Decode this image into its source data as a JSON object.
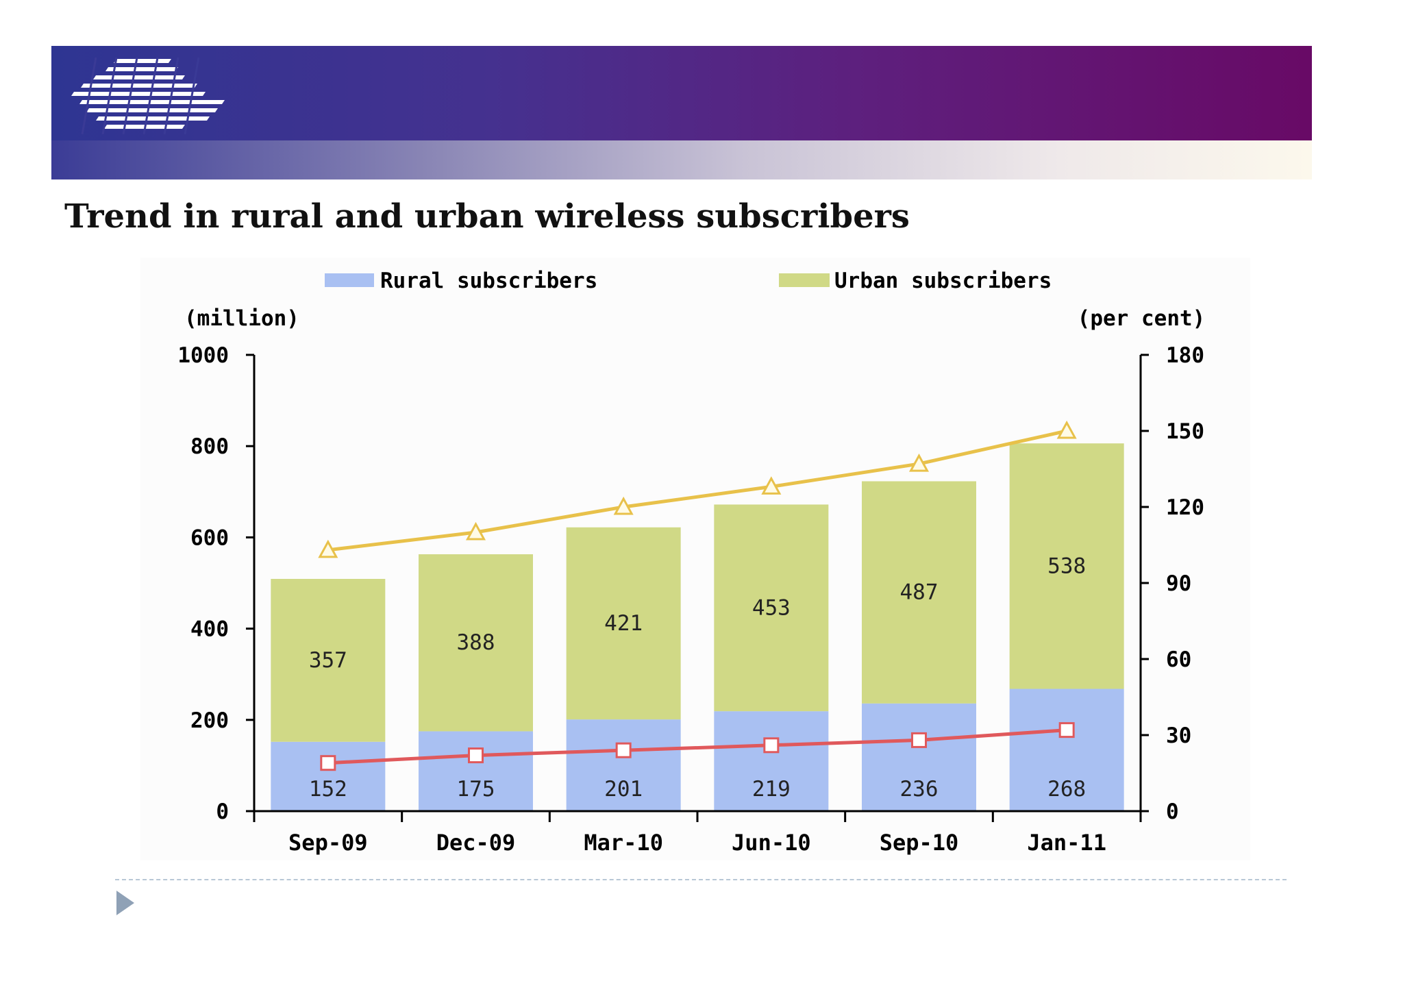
{
  "slide": {
    "title": "Trend in rural and urban wireless subscribers"
  },
  "colors": {
    "banner_start": "#2e3592",
    "banner_end": "#680a66",
    "rural": "#a9c0f2",
    "urban": "#d0d986",
    "rural_line": "#e0595c",
    "urban_line": "#e8c14a"
  },
  "chart_data": {
    "type": "bar",
    "stacked": true,
    "categories": [
      "Sep-09",
      "Dec-09",
      "Mar-10",
      "Jun-10",
      "Sep-10",
      "Jan-11"
    ],
    "series": [
      {
        "name": "Rural subscribers",
        "values": [
          152,
          175,
          201,
          219,
          236,
          268
        ],
        "axis": "left"
      },
      {
        "name": "Urban subscribers",
        "values": [
          357,
          388,
          421,
          453,
          487,
          538
        ],
        "axis": "left"
      }
    ],
    "line_series": [
      {
        "marker": "triangle",
        "axis": "right",
        "values": [
          103,
          110,
          120,
          128,
          137,
          150
        ]
      },
      {
        "marker": "square",
        "axis": "right",
        "values": [
          19,
          22,
          24,
          26,
          28,
          32
        ]
      }
    ],
    "ylabel": "(million)",
    "ylabel_right": "(per cent)",
    "ylim": [
      0,
      1000
    ],
    "ylim_right": [
      0,
      180
    ],
    "yticks": [
      0,
      200,
      400,
      600,
      800,
      1000
    ],
    "yticks_right": [
      0,
      30,
      60,
      90,
      120,
      150,
      180
    ],
    "legend_position": "top",
    "grid": false
  }
}
